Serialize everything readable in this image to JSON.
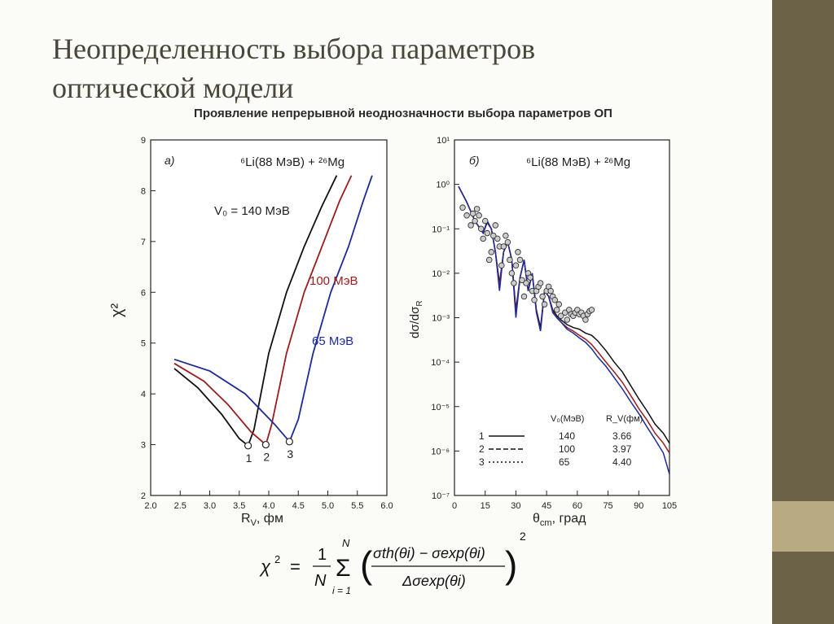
{
  "slide": {
    "title_line1": "Неопределенность выбора параметров",
    "title_line2": "оптической модели",
    "subtitle": "Проявление непрерывной неоднозначности выбора параметров ОП"
  },
  "chart_data": [
    {
      "type": "line",
      "panel_label": "а)",
      "reaction_label": "⁶Li(88 МэВ) + ²⁶Mg",
      "xlabel": "R",
      "xlabel_sub": "V",
      "xlabel_suffix": ", фм",
      "ylabel": "χ²",
      "xlim": [
        2.0,
        6.0
      ],
      "ylim": [
        2,
        9
      ],
      "xticks": [
        "2.0",
        "2.5",
        "3.0",
        "3.5",
        "4.0",
        "4.5",
        "5.0",
        "5.5",
        "6.0"
      ],
      "yticks": [
        "2",
        "3",
        "4",
        "5",
        "6",
        "7",
        "8",
        "9"
      ],
      "curve_labels": [
        "V₀ = 140 МэВ",
        "100 МэВ",
        "65 МэВ"
      ],
      "minimum_labels": [
        "1",
        "2",
        "3"
      ],
      "series": [
        {
          "color": "#111111",
          "x": [
            2.4,
            2.8,
            3.2,
            3.5,
            3.65,
            3.75,
            4.0,
            4.3,
            4.6,
            4.9,
            5.15
          ],
          "y": [
            4.5,
            4.12,
            3.6,
            3.12,
            2.98,
            3.3,
            4.8,
            6.0,
            6.9,
            7.7,
            8.3
          ]
        },
        {
          "color": "#9b1c1c",
          "x": [
            2.4,
            2.9,
            3.3,
            3.7,
            3.95,
            4.05,
            4.3,
            4.6,
            4.9,
            5.2,
            5.4
          ],
          "y": [
            4.6,
            4.25,
            3.8,
            3.25,
            3.0,
            3.4,
            4.8,
            6.0,
            6.9,
            7.8,
            8.3
          ]
        },
        {
          "color": "#1c2a9b",
          "x": [
            2.4,
            3.0,
            3.6,
            4.1,
            4.35,
            4.5,
            4.75,
            5.05,
            5.35,
            5.6,
            5.75
          ],
          "y": [
            4.68,
            4.45,
            4.0,
            3.4,
            3.06,
            3.5,
            4.8,
            6.0,
            6.9,
            7.8,
            8.3
          ]
        }
      ]
    },
    {
      "type": "line",
      "panel_label": "б)",
      "reaction_label": "⁶Li(88 МэВ) + ²⁶Mg",
      "xlabel": "θ",
      "xlabel_sub": "cm",
      "xlabel_suffix": ", град",
      "ylabel": "dσ/dσ",
      "ylabel_sub": "R",
      "log_y": true,
      "xlim": [
        0,
        105
      ],
      "ylim": [
        1e-07,
        10
      ],
      "xticks": [
        "0",
        "15",
        "30",
        "45",
        "60",
        "75",
        "90",
        "105"
      ],
      "yticks": [
        "10⁻⁷",
        "10⁻⁶",
        "10⁻⁵",
        "10⁻⁴",
        "10⁻³",
        "10⁻²",
        "10⁻¹",
        "10⁰",
        "10¹"
      ],
      "legend": {
        "headers": [
          "V₀(МэВ)",
          "R_V(фм)"
        ],
        "rows": [
          {
            "label": "1",
            "style": "solid",
            "v0": "140",
            "rv": "3.66"
          },
          {
            "label": "2",
            "style": "dashed",
            "v0": "100",
            "rv": "3.97"
          },
          {
            "label": "3",
            "style": "dotted",
            "v0": "65",
            "rv": "4.40"
          }
        ]
      },
      "series": [
        {
          "color": "#111111",
          "x": [
            2,
            6,
            10,
            14,
            16,
            18,
            20,
            22,
            24,
            26,
            28,
            30,
            32,
            34,
            36,
            38,
            40,
            42,
            44,
            46,
            48,
            50,
            52,
            55,
            58,
            61,
            64,
            67,
            70,
            74,
            78,
            82,
            86,
            90,
            94,
            98,
            102,
            105
          ],
          "y": [
            0.9,
            0.4,
            0.15,
            0.08,
            0.15,
            0.1,
            0.03,
            0.006,
            0.03,
            0.05,
            0.02,
            0.0015,
            0.008,
            0.02,
            0.004,
            0.01,
            0.0015,
            0.0006,
            0.004,
            0.003,
            0.0015,
            0.0011,
            0.0009,
            0.0007,
            0.0006,
            0.00055,
            0.00045,
            0.0004,
            0.0003,
            0.00018,
            0.0001,
            6e-05,
            3e-05,
            1.5e-05,
            8e-06,
            4e-06,
            2.5e-06,
            1.5e-06
          ]
        },
        {
          "color": "#9b1c1c",
          "x": [
            2,
            6,
            10,
            14,
            16,
            18,
            20,
            22,
            24,
            26,
            28,
            30,
            32,
            34,
            36,
            38,
            40,
            42,
            44,
            46,
            48,
            50,
            52,
            55,
            58,
            61,
            64,
            67,
            70,
            74,
            78,
            82,
            86,
            90,
            94,
            98,
            102,
            105
          ],
          "y": [
            0.9,
            0.4,
            0.15,
            0.08,
            0.14,
            0.1,
            0.03,
            0.005,
            0.03,
            0.05,
            0.02,
            0.0012,
            0.008,
            0.02,
            0.004,
            0.01,
            0.0014,
            0.0005,
            0.004,
            0.003,
            0.0014,
            0.001,
            0.0008,
            0.0006,
            0.0005,
            0.0004,
            0.00033,
            0.00025,
            0.00017,
            0.0001,
            6e-05,
            3.5e-05,
            1.8e-05,
            9e-06,
            5e-06,
            2.5e-06,
            1.5e-06,
            9e-07
          ]
        },
        {
          "color": "#1c2a9b",
          "x": [
            2,
            6,
            10,
            14,
            16,
            18,
            20,
            22,
            24,
            26,
            28,
            30,
            32,
            34,
            36,
            38,
            40,
            42,
            44,
            46,
            48,
            50,
            52,
            55,
            58,
            61,
            64,
            67,
            70,
            74,
            78,
            82,
            86,
            90,
            94,
            98,
            102,
            105
          ],
          "y": [
            0.9,
            0.4,
            0.15,
            0.08,
            0.14,
            0.1,
            0.03,
            0.004,
            0.03,
            0.05,
            0.02,
            0.001,
            0.008,
            0.02,
            0.004,
            0.01,
            0.0013,
            0.0005,
            0.004,
            0.003,
            0.0013,
            0.001,
            0.0008,
            0.00055,
            0.00045,
            0.00035,
            0.00028,
            0.0002,
            0.00013,
            8e-05,
            4.5e-05,
            2.5e-05,
            1.3e-05,
            7e-06,
            3.5e-06,
            1.8e-06,
            9e-07,
            3e-07
          ]
        }
      ],
      "points": {
        "x": [
          4,
          6,
          8,
          9,
          10,
          11,
          12,
          13,
          14,
          15,
          16,
          17,
          18,
          19,
          20,
          21,
          22,
          23,
          24,
          25,
          26,
          27,
          28,
          29,
          30,
          31,
          32,
          33,
          34,
          35,
          36,
          37,
          38,
          39,
          40,
          41,
          42,
          43,
          44,
          45,
          46,
          47,
          48,
          49,
          50,
          51,
          52,
          54,
          55,
          56,
          57,
          58,
          59,
          60,
          61,
          62,
          63,
          64,
          65,
          66,
          67
        ],
        "y": [
          0.3,
          0.2,
          0.12,
          0.22,
          0.15,
          0.28,
          0.2,
          0.1,
          0.06,
          0.15,
          0.08,
          0.02,
          0.03,
          0.07,
          0.12,
          0.06,
          0.04,
          0.015,
          0.04,
          0.07,
          0.05,
          0.02,
          0.01,
          0.006,
          0.015,
          0.03,
          0.02,
          0.007,
          0.003,
          0.006,
          0.01,
          0.008,
          0.004,
          0.0025,
          0.004,
          0.005,
          0.006,
          0.003,
          0.002,
          0.004,
          0.005,
          0.004,
          0.003,
          0.0025,
          0.0015,
          0.002,
          0.0011,
          0.0013,
          0.0009,
          0.0015,
          0.0012,
          0.0011,
          0.0013,
          0.0015,
          0.0012,
          0.0013,
          0.0011,
          0.0009,
          0.0012,
          0.0014,
          0.0015
        ]
      }
    }
  ],
  "formula": {
    "lhs": "χ",
    "lhs_sup": "2",
    "eq": "=",
    "frac_num": "1",
    "frac_den": "N",
    "sum": "Σ",
    "sum_top": "N",
    "sum_bottom": "i = 1",
    "numerator": "σth(θi) − σexp(θi)",
    "denominator": "Δσexp(θi)",
    "power": "2"
  }
}
